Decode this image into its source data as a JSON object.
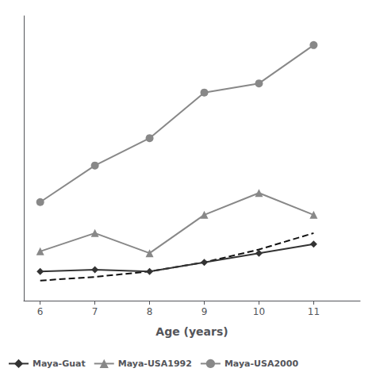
{
  "chart_data": {
    "type": "line",
    "x": [
      6,
      7,
      8,
      9,
      10,
      11
    ],
    "xlabel": "Age (years)",
    "xlim": [
      5.7,
      11.85
    ],
    "xticks": [
      6,
      7,
      8,
      9,
      10,
      11
    ],
    "ylim": [
      14.4,
      22.2
    ],
    "tick_labels": "x",
    "grid": false,
    "legend": "lower left",
    "series": [
      {
        "values": [
          14.95,
          15.05,
          15.2,
          15.45,
          15.8,
          16.25
        ],
        "color": "#111111",
        "line_style": "dashed",
        "marker": "none"
      },
      {
        "name": "Maya-Guat",
        "values": [
          15.2,
          15.25,
          15.2,
          15.45,
          15.7,
          15.95
        ],
        "color": "#333333",
        "line_style": "solid",
        "marker": "diamond"
      },
      {
        "name": "Maya-USA1992",
        "values": [
          15.75,
          16.25,
          15.7,
          16.75,
          17.35,
          16.75
        ],
        "color": "#888888",
        "line_style": "solid",
        "marker": "triangle"
      },
      {
        "name": "Maya-USA2000",
        "values": [
          17.1,
          18.1,
          18.85,
          20.1,
          20.35,
          21.4
        ],
        "color": "#888888",
        "line_style": "solid",
        "marker": "circle"
      }
    ]
  }
}
